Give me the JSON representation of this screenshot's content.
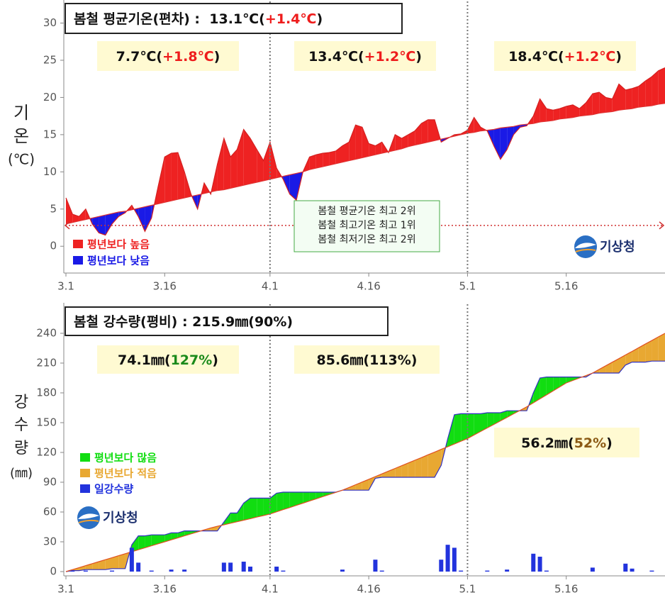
{
  "chart_data": [
    {
      "type": "area",
      "ylabel": [
        "기",
        "온",
        "(℃)"
      ],
      "title": {
        "parts": [
          {
            "text": "봄철 평균기온(편차) :  13.1℃(",
            "color": "#111111"
          },
          {
            "text": "+1.4℃",
            "color": "#ee1c1c"
          },
          {
            "text": ")",
            "color": "#111111"
          }
        ]
      },
      "annotations": [
        {
          "background": "#fffad2",
          "parts": [
            {
              "text": "7.7℃(",
              "color": "#111111"
            },
            {
              "text": "+1.8℃",
              "color": "#ee1c1c"
            },
            {
              "text": ")",
              "color": "#111111"
            }
          ]
        },
        {
          "background": "#fffad2",
          "parts": [
            {
              "text": "13.4℃(",
              "color": "#111111"
            },
            {
              "text": "+1.2℃",
              "color": "#ee1c1c"
            },
            {
              "text": ")",
              "color": "#111111"
            }
          ]
        },
        {
          "background": "#fffad2",
          "parts": [
            {
              "text": "18.4℃(",
              "color": "#111111"
            },
            {
              "text": "+1.2℃",
              "color": "#ee1c1c"
            },
            {
              "text": ")",
              "color": "#111111"
            }
          ]
        }
      ],
      "note": {
        "background": "#f3fdf3",
        "border": "#44aa44",
        "lines": [
          "봄철 평균기온 최고 2위",
          "봄철 최고기온 최고 1위",
          "봄철 최저기온 최고 2위"
        ]
      },
      "legend": [
        {
          "label": "평년보다 높음",
          "color": "#ee2222"
        },
        {
          "label": "평년보다 낮음",
          "color": "#1a1ae6"
        }
      ],
      "logo": "기상청",
      "reference_line": 2.8,
      "categories": [
        "3.1",
        null,
        null,
        null,
        null,
        null,
        null,
        null,
        null,
        null,
        null,
        null,
        null,
        null,
        null,
        "3.16",
        null,
        null,
        null,
        null,
        null,
        null,
        null,
        null,
        null,
        null,
        null,
        null,
        null,
        null,
        null,
        "4.1",
        null,
        null,
        null,
        null,
        null,
        null,
        null,
        null,
        null,
        null,
        null,
        null,
        null,
        null,
        "4.16",
        null,
        null,
        null,
        null,
        null,
        null,
        null,
        null,
        null,
        null,
        null,
        null,
        null,
        null,
        "5.1",
        null,
        null,
        null,
        null,
        null,
        null,
        null,
        null,
        null,
        null,
        null,
        null,
        null,
        null,
        "5.16",
        null,
        null,
        null,
        null,
        null,
        null,
        null,
        null,
        null,
        null,
        null,
        null,
        null,
        null,
        null
      ],
      "series": [
        {
          "color": "#d42020",
          "values": [
            6.5,
            4.3,
            4.0,
            5.0,
            3.0,
            1.8,
            1.5,
            3.0,
            4.0,
            4.5,
            5.5,
            4.0,
            2.0,
            3.8,
            8.0,
            12.0,
            12.5,
            12.6,
            10.0,
            7.0,
            5.0,
            8.5,
            7.0,
            11.0,
            14.5,
            12.0,
            13.0,
            15.7,
            14.5,
            13.0,
            11.5,
            14.0,
            10.5,
            9.0,
            7.0,
            6.2,
            10.0,
            12.0,
            12.3,
            12.5,
            12.6,
            12.8,
            13.5,
            14.0,
            16.3,
            16.0,
            13.8,
            13.5,
            14.0,
            12.6,
            15.0,
            14.5,
            15.0,
            15.5,
            16.5,
            17.0,
            17.0,
            14.0,
            14.5,
            15.0,
            15.1,
            15.6,
            17.3,
            16.0,
            15.5,
            13.5,
            11.7,
            13.0,
            15.0,
            16.0,
            16.2,
            17.5,
            19.8,
            18.5,
            18.3,
            18.5,
            18.8,
            19.0,
            18.5,
            19.3,
            20.5,
            20.7,
            20.0,
            19.8,
            21.8,
            21.0,
            21.2,
            21.5,
            22.2,
            22.8,
            23.6,
            24.0
          ]
        },
        {
          "color": "#e03030",
          "values": [
            3.0,
            3.2,
            3.4,
            3.6,
            3.8,
            4.0,
            4.2,
            4.4,
            4.6,
            4.7,
            4.9,
            5.1,
            5.3,
            5.5,
            5.7,
            5.9,
            6.1,
            6.3,
            6.5,
            6.7,
            6.9,
            7.1,
            7.3,
            7.5,
            7.6,
            7.8,
            8.0,
            8.2,
            8.4,
            8.6,
            8.8,
            9.0,
            9.2,
            9.4,
            9.6,
            9.8,
            10.0,
            10.3,
            10.5,
            10.7,
            10.9,
            11.1,
            11.3,
            11.5,
            11.7,
            11.9,
            12.1,
            12.3,
            12.5,
            12.7,
            12.9,
            13.1,
            13.4,
            13.6,
            13.8,
            14.0,
            14.2,
            14.4,
            14.6,
            14.8,
            15.0,
            15.2,
            15.3,
            15.5,
            15.6,
            15.7,
            15.9,
            16.0,
            16.1,
            16.3,
            16.4,
            16.5,
            16.7,
            16.8,
            16.9,
            17.1,
            17.2,
            17.3,
            17.5,
            17.6,
            17.7,
            17.9,
            18.0,
            18.1,
            18.3,
            18.4,
            18.5,
            18.7,
            18.8,
            18.9,
            19.1,
            19.2
          ]
        }
      ],
      "ylim": [
        -3.6,
        33.1
      ],
      "yticks": [
        0,
        5,
        10,
        15,
        20,
        25,
        30
      ],
      "grid": false
    },
    {
      "type": "area",
      "ylabel": [
        "강",
        "수",
        "량",
        "(㎜)"
      ],
      "title": {
        "parts": [
          {
            "text": "봄철 강수량(평비) : 215.9㎜(90%)",
            "color": "#111111"
          }
        ]
      },
      "annotations": [
        {
          "background": "#fffad2",
          "parts": [
            {
              "text": "74.1㎜(",
              "color": "#111111"
            },
            {
              "text": "127%",
              "color": "#1a8a1a"
            },
            {
              "text": ")",
              "color": "#111111"
            }
          ]
        },
        {
          "background": "#fffad2",
          "parts": [
            {
              "text": "85.6㎜(113%)",
              "color": "#111111"
            }
          ]
        },
        {
          "background": "#fffad2",
          "parts": [
            {
              "text": "56.2㎜(",
              "color": "#111111"
            },
            {
              "text": "52%",
              "color": "#8b5a14"
            },
            {
              "text": ")",
              "color": "#111111"
            }
          ]
        }
      ],
      "legend": [
        {
          "label": "평년보다 많음",
          "color": "#11dd11"
        },
        {
          "label": "평년보다 적음",
          "color": "#e8a832"
        },
        {
          "label": "일강수량",
          "color": "#2233dd"
        }
      ],
      "logo": "기상청",
      "categories": [
        "3.1",
        null,
        null,
        null,
        null,
        null,
        null,
        null,
        null,
        null,
        null,
        null,
        null,
        null,
        null,
        "3.16",
        null,
        null,
        null,
        null,
        null,
        null,
        null,
        null,
        null,
        null,
        null,
        null,
        null,
        null,
        null,
        "4.1",
        null,
        null,
        null,
        null,
        null,
        null,
        null,
        null,
        null,
        null,
        null,
        null,
        null,
        null,
        "4.16",
        null,
        null,
        null,
        null,
        null,
        null,
        null,
        null,
        null,
        null,
        null,
        null,
        null,
        null,
        "5.1",
        null,
        null,
        null,
        null,
        null,
        null,
        null,
        null,
        null,
        null,
        null,
        null,
        null,
        null,
        "5.16",
        null,
        null,
        null,
        null,
        null,
        null,
        null,
        null,
        null,
        null,
        null,
        null,
        null,
        null,
        null
      ],
      "series": [
        {
          "color": "#3030c0",
          "values": [
            0,
            1,
            1,
            2,
            2,
            2,
            2,
            3,
            3,
            3,
            27,
            36,
            36,
            37,
            37,
            37,
            39,
            39,
            41,
            41,
            41,
            41,
            41,
            41,
            50,
            59,
            59,
            69,
            74,
            74,
            74,
            74,
            79,
            80,
            80,
            80,
            80,
            80,
            80,
            80,
            80,
            80,
            82,
            82,
            82,
            82,
            82,
            94,
            95,
            95,
            95,
            95,
            95,
            95,
            95,
            95,
            95,
            107,
            134,
            158,
            159,
            159,
            159,
            159,
            160,
            160,
            160,
            162,
            162,
            162,
            162,
            180,
            195,
            196,
            196,
            196,
            196,
            196,
            196,
            196,
            200,
            200,
            200,
            200,
            200,
            208,
            211,
            211,
            211,
            212,
            212,
            212
          ]
        },
        {
          "color": "#e05020",
          "values": [
            0,
            2,
            4,
            6,
            8,
            10,
            12,
            14,
            16,
            18,
            20,
            22,
            24,
            26,
            28,
            30,
            32,
            34,
            36,
            38,
            40,
            42,
            44,
            45.6,
            47.1,
            48.7,
            50.2,
            51.8,
            53.3,
            54.9,
            56.4,
            58,
            60.2,
            62.4,
            64.5,
            66.7,
            68.9,
            71.1,
            73.3,
            75.5,
            77.6,
            79.8,
            82,
            84.7,
            87.5,
            90.2,
            92.9,
            95.7,
            98.4,
            101.2,
            103.9,
            106.6,
            109.4,
            112.1,
            114.8,
            117.6,
            120.3,
            123.1,
            125.8,
            128.5,
            131.3,
            134,
            137.6,
            141.1,
            144.7,
            148.2,
            151.8,
            155.3,
            158.9,
            162.4,
            166,
            170,
            174,
            178,
            182,
            186,
            190,
            192.5,
            195,
            197.5,
            200,
            203.6,
            207.3,
            210.9,
            214.5,
            218.2,
            221.8,
            225.5,
            229.1,
            232.7,
            236.4,
            240
          ]
        },
        {
          "type": "bar",
          "color": "#2233dd",
          "values": [
            0,
            1,
            0,
            1,
            0,
            0,
            0,
            1,
            0,
            0,
            24,
            9,
            0,
            1,
            0,
            0,
            2,
            0,
            2,
            0,
            0,
            0,
            0,
            0,
            9,
            9,
            0,
            10,
            5,
            0,
            0,
            0,
            5,
            1,
            0,
            0,
            0,
            0,
            0,
            0,
            0,
            0,
            2,
            0,
            0,
            0,
            0,
            12,
            1,
            0,
            0,
            0,
            0,
            0,
            0,
            0,
            0,
            12,
            27,
            24,
            1,
            0,
            0,
            0,
            1,
            0,
            0,
            2,
            0,
            0,
            0,
            18,
            15,
            1,
            0,
            0,
            0,
            0,
            0,
            0,
            4,
            0,
            0,
            0,
            0,
            8,
            3,
            0,
            0,
            1,
            0,
            0
          ]
        }
      ],
      "ylim": [
        -4.3,
        270.7
      ],
      "yticks": [
        0,
        30,
        60,
        90,
        120,
        150,
        180,
        210,
        240
      ],
      "grid": false
    }
  ]
}
